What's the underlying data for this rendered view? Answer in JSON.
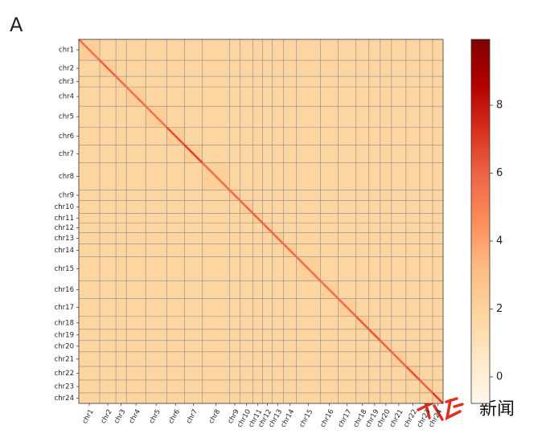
{
  "panel_label": "A",
  "watermark": "新闻",
  "chart_data": {
    "type": "heatmap",
    "categories": [
      "chr1",
      "chr2",
      "chr3",
      "chr4",
      "chr5",
      "chr6",
      "chr7",
      "chr8",
      "chr9",
      "chr10",
      "chr11",
      "chr12",
      "chr13",
      "chr14",
      "chr15",
      "chr16",
      "chr17",
      "chr18",
      "chr19",
      "chr20",
      "chr21",
      "chr22",
      "chr23",
      "chr24"
    ],
    "lengths": [
      26,
      20,
      13,
      24,
      26,
      22,
      22,
      34,
      13,
      16,
      12,
      12,
      14,
      16,
      30,
      22,
      22,
      16,
      14,
      14,
      18,
      17,
      16,
      13
    ],
    "trans_value": 1.8,
    "intra_values": [
      2.2,
      2.2,
      2.1,
      2.2,
      2.2,
      2.3,
      2.2,
      2.1,
      2.2,
      2.2,
      2.3,
      2.2,
      2.2,
      2.2,
      2.1,
      2.1,
      2.2,
      2.3,
      2.3,
      2.2,
      2.3,
      2.3,
      2.1,
      2.2
    ],
    "diagonal_values": [
      5.5,
      6,
      5.8,
      5.6,
      5.5,
      6.5,
      6.8,
      5.6,
      5.8,
      5.9,
      6,
      5.9,
      5.8,
      5.7,
      5.6,
      5.5,
      5.7,
      6.2,
      6.3,
      6,
      5.8,
      6.4,
      6,
      7
    ],
    "colormap": [
      "#fff7ec",
      "#fee8c8",
      "#fdd49e",
      "#fdbb84",
      "#fc8d59",
      "#ef6548",
      "#d7301f",
      "#b30000",
      "#7f0000"
    ],
    "clim": [
      -0.78,
      9.94
    ],
    "cticks": [
      0,
      2,
      4,
      6,
      8
    ],
    "grid": true
  }
}
